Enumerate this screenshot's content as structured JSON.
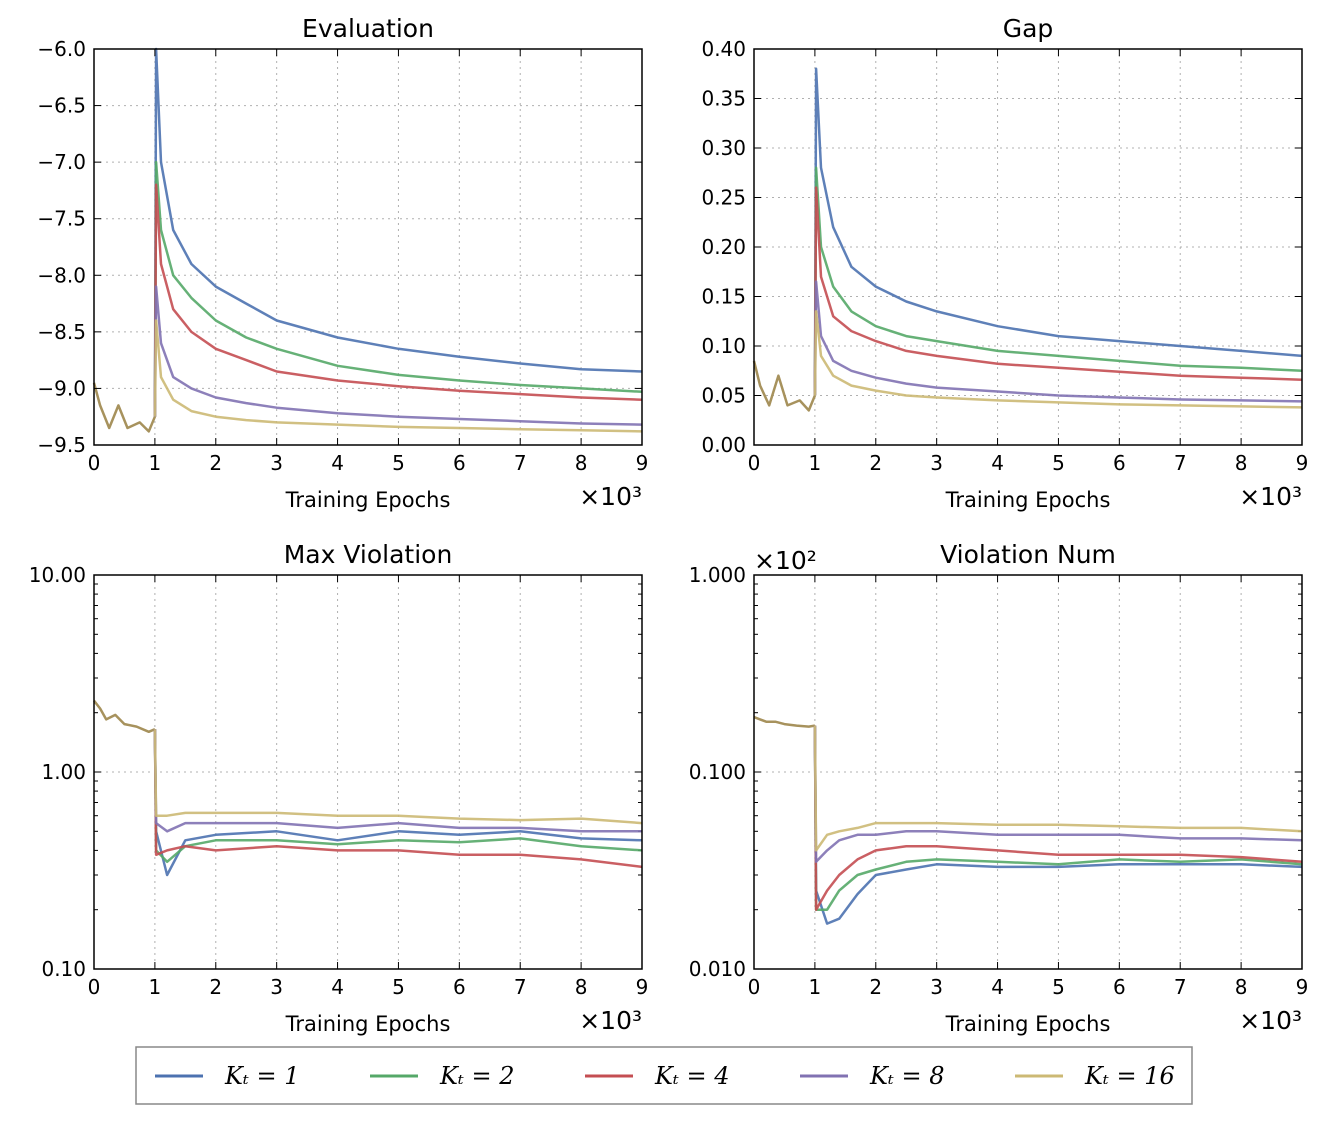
{
  "figure": {
    "legend": [
      {
        "label": "K_t = 1",
        "text": "Kₜ = 1",
        "color": "#4c72b0"
      },
      {
        "label": "K_t = 2",
        "text": "Kₜ = 2",
        "color": "#55a868"
      },
      {
        "label": "K_t = 4",
        "text": "Kₜ = 4",
        "color": "#c44e52"
      },
      {
        "label": "K_t = 8",
        "text": "Kₜ = 8",
        "color": "#8172b2"
      },
      {
        "label": "K_t = 16",
        "text": "Kₜ = 16",
        "color": "#ccb974"
      }
    ]
  },
  "chart_data": [
    {
      "type": "line",
      "title": "Evaluation",
      "xlabel": "Training Epochs",
      "x_multiplier": "×10³",
      "xlim": [
        0,
        9
      ],
      "xticks": [
        "0",
        "1",
        "2",
        "3",
        "4",
        "5",
        "6",
        "7",
        "8",
        "9"
      ],
      "ylim": [
        -9.5,
        -6.0
      ],
      "yscale": "linear",
      "yticks": [
        "−6.0",
        "−6.5",
        "−7.0",
        "−7.5",
        "−8.0",
        "−8.5",
        "−9.0",
        "−9.5"
      ],
      "ytick_values": [
        -6.0,
        -6.5,
        -7.0,
        -7.5,
        -8.0,
        -8.5,
        -9.0,
        -9.5
      ],
      "pre": [
        [
          0,
          -8.95
        ],
        [
          0.1,
          -9.15
        ],
        [
          0.25,
          -9.35
        ],
        [
          0.4,
          -9.15
        ],
        [
          0.55,
          -9.35
        ],
        [
          0.75,
          -9.3
        ],
        [
          0.9,
          -9.38
        ],
        [
          1.0,
          -9.25
        ]
      ],
      "series": [
        {
          "name": "K_t = 1",
          "x": [
            1.02,
            1.1,
            1.3,
            1.6,
            2,
            2.5,
            3,
            4,
            5,
            6,
            7,
            8,
            9
          ],
          "y": [
            -6.0,
            -7.0,
            -7.6,
            -7.9,
            -8.1,
            -8.25,
            -8.4,
            -8.55,
            -8.65,
            -8.72,
            -8.78,
            -8.83,
            -8.85
          ]
        },
        {
          "name": "K_t = 2",
          "x": [
            1.02,
            1.1,
            1.3,
            1.6,
            2,
            2.5,
            3,
            4,
            5,
            6,
            7,
            8,
            9
          ],
          "y": [
            -7.0,
            -7.6,
            -8.0,
            -8.2,
            -8.4,
            -8.55,
            -8.65,
            -8.8,
            -8.88,
            -8.93,
            -8.97,
            -9.0,
            -9.03
          ]
        },
        {
          "name": "K_t = 4",
          "x": [
            1.02,
            1.1,
            1.3,
            1.6,
            2,
            2.5,
            3,
            4,
            5,
            6,
            7,
            8,
            9
          ],
          "y": [
            -7.2,
            -7.9,
            -8.3,
            -8.5,
            -8.65,
            -8.75,
            -8.85,
            -8.93,
            -8.98,
            -9.02,
            -9.05,
            -9.08,
            -9.1
          ]
        },
        {
          "name": "K_t = 8",
          "x": [
            1.02,
            1.1,
            1.3,
            1.6,
            2,
            2.5,
            3,
            4,
            5,
            6,
            7,
            8,
            9
          ],
          "y": [
            -8.1,
            -8.6,
            -8.9,
            -9.0,
            -9.08,
            -9.13,
            -9.17,
            -9.22,
            -9.25,
            -9.27,
            -9.29,
            -9.31,
            -9.32
          ]
        },
        {
          "name": "K_t = 16",
          "x": [
            1.02,
            1.1,
            1.3,
            1.6,
            2,
            2.5,
            3,
            4,
            5,
            6,
            7,
            8,
            9
          ],
          "y": [
            -8.4,
            -8.9,
            -9.1,
            -9.2,
            -9.25,
            -9.28,
            -9.3,
            -9.32,
            -9.34,
            -9.35,
            -9.36,
            -9.37,
            -9.38
          ]
        }
      ]
    },
    {
      "type": "line",
      "title": "Gap",
      "xlabel": "Training Epochs",
      "x_multiplier": "×10³",
      "xlim": [
        0,
        9
      ],
      "xticks": [
        "0",
        "1",
        "2",
        "3",
        "4",
        "5",
        "6",
        "7",
        "8",
        "9"
      ],
      "ylim": [
        0.0,
        0.4
      ],
      "yscale": "linear",
      "yticks": [
        "0.40",
        "0.35",
        "0.30",
        "0.25",
        "0.20",
        "0.15",
        "0.10",
        "0.05",
        "0.00"
      ],
      "ytick_values": [
        0.4,
        0.35,
        0.3,
        0.25,
        0.2,
        0.15,
        0.1,
        0.05,
        0.0
      ],
      "pre": [
        [
          0,
          0.085
        ],
        [
          0.1,
          0.06
        ],
        [
          0.25,
          0.04
        ],
        [
          0.4,
          0.07
        ],
        [
          0.55,
          0.04
        ],
        [
          0.75,
          0.045
        ],
        [
          0.9,
          0.035
        ],
        [
          1.0,
          0.05
        ]
      ],
      "series": [
        {
          "name": "K_t = 1",
          "x": [
            1.02,
            1.1,
            1.3,
            1.6,
            2,
            2.5,
            3,
            4,
            5,
            6,
            7,
            8,
            9
          ],
          "y": [
            0.38,
            0.28,
            0.22,
            0.18,
            0.16,
            0.145,
            0.135,
            0.12,
            0.11,
            0.105,
            0.1,
            0.095,
            0.09
          ]
        },
        {
          "name": "K_t = 2",
          "x": [
            1.02,
            1.1,
            1.3,
            1.6,
            2,
            2.5,
            3,
            4,
            5,
            6,
            7,
            8,
            9
          ],
          "y": [
            0.28,
            0.2,
            0.16,
            0.135,
            0.12,
            0.11,
            0.105,
            0.095,
            0.09,
            0.085,
            0.08,
            0.078,
            0.075
          ]
        },
        {
          "name": "K_t = 4",
          "x": [
            1.02,
            1.1,
            1.3,
            1.6,
            2,
            2.5,
            3,
            4,
            5,
            6,
            7,
            8,
            9
          ],
          "y": [
            0.26,
            0.17,
            0.13,
            0.115,
            0.105,
            0.095,
            0.09,
            0.082,
            0.078,
            0.074,
            0.07,
            0.068,
            0.066
          ]
        },
        {
          "name": "K_t = 8",
          "x": [
            1.02,
            1.1,
            1.3,
            1.6,
            2,
            2.5,
            3,
            4,
            5,
            6,
            7,
            8,
            9
          ],
          "y": [
            0.165,
            0.11,
            0.085,
            0.075,
            0.068,
            0.062,
            0.058,
            0.054,
            0.05,
            0.048,
            0.046,
            0.045,
            0.044
          ]
        },
        {
          "name": "K_t = 16",
          "x": [
            1.02,
            1.1,
            1.3,
            1.6,
            2,
            2.5,
            3,
            4,
            5,
            6,
            7,
            8,
            9
          ],
          "y": [
            0.135,
            0.09,
            0.07,
            0.06,
            0.055,
            0.05,
            0.048,
            0.045,
            0.043,
            0.041,
            0.04,
            0.039,
            0.038
          ]
        }
      ]
    },
    {
      "type": "line",
      "title": "Max Violation",
      "xlabel": "Training Epochs",
      "x_multiplier": "×10³",
      "xlim": [
        0,
        9
      ],
      "xticks": [
        "0",
        "1",
        "2",
        "3",
        "4",
        "5",
        "6",
        "7",
        "8",
        "9"
      ],
      "ylim": [
        0.1,
        10.0
      ],
      "yscale": "log",
      "yticks": [
        "10.00",
        "1.00",
        "0.10"
      ],
      "ytick_values": [
        10.0,
        1.0,
        0.1
      ],
      "pre": [
        [
          0,
          2.3
        ],
        [
          0.1,
          2.1
        ],
        [
          0.2,
          1.85
        ],
        [
          0.35,
          1.95
        ],
        [
          0.5,
          1.75
        ],
        [
          0.7,
          1.7
        ],
        [
          0.9,
          1.6
        ],
        [
          1.0,
          1.65
        ]
      ],
      "series": [
        {
          "name": "K_t = 1",
          "x": [
            1.02,
            1.2,
            1.5,
            2,
            3,
            4,
            5,
            6,
            7,
            8,
            9
          ],
          "y": [
            0.5,
            0.3,
            0.45,
            0.48,
            0.5,
            0.45,
            0.5,
            0.48,
            0.5,
            0.46,
            0.45
          ]
        },
        {
          "name": "K_t = 2",
          "x": [
            1.02,
            1.2,
            1.5,
            2,
            3,
            4,
            5,
            6,
            7,
            8,
            9
          ],
          "y": [
            0.4,
            0.35,
            0.42,
            0.45,
            0.45,
            0.43,
            0.45,
            0.44,
            0.46,
            0.42,
            0.4
          ]
        },
        {
          "name": "K_t = 4",
          "x": [
            1.02,
            1.2,
            1.5,
            2,
            3,
            4,
            5,
            6,
            7,
            8,
            9
          ],
          "y": [
            0.38,
            0.4,
            0.42,
            0.4,
            0.42,
            0.4,
            0.4,
            0.38,
            0.38,
            0.36,
            0.33
          ]
        },
        {
          "name": "K_t = 8",
          "x": [
            1.02,
            1.2,
            1.5,
            2,
            3,
            4,
            5,
            6,
            7,
            8,
            9
          ],
          "y": [
            0.55,
            0.5,
            0.55,
            0.55,
            0.55,
            0.52,
            0.55,
            0.52,
            0.52,
            0.5,
            0.5
          ]
        },
        {
          "name": "K_t = 16",
          "x": [
            1.02,
            1.2,
            1.5,
            2,
            3,
            4,
            5,
            6,
            7,
            8,
            9
          ],
          "y": [
            0.6,
            0.6,
            0.62,
            0.62,
            0.62,
            0.6,
            0.6,
            0.58,
            0.57,
            0.58,
            0.55
          ]
        }
      ]
    },
    {
      "type": "line",
      "title": "Violation Num",
      "xlabel": "Training Epochs",
      "x_multiplier": "×10³",
      "y_multiplier": "×10²",
      "xlim": [
        0,
        9
      ],
      "xticks": [
        "0",
        "1",
        "2",
        "3",
        "4",
        "5",
        "6",
        "7",
        "8",
        "9"
      ],
      "ylim": [
        0.01,
        1.0
      ],
      "yscale": "log",
      "yticks": [
        "1.000",
        "0.100",
        "0.010"
      ],
      "ytick_values": [
        1.0,
        0.1,
        0.01
      ],
      "pre": [
        [
          0,
          0.19
        ],
        [
          0.1,
          0.185
        ],
        [
          0.2,
          0.18
        ],
        [
          0.35,
          0.18
        ],
        [
          0.5,
          0.175
        ],
        [
          0.7,
          0.172
        ],
        [
          0.9,
          0.17
        ],
        [
          1.0,
          0.172
        ]
      ],
      "series": [
        {
          "name": "K_t = 1",
          "x": [
            1.02,
            1.2,
            1.4,
            1.7,
            2,
            2.5,
            3,
            4,
            5,
            6,
            7,
            8,
            9
          ],
          "y": [
            0.025,
            0.017,
            0.018,
            0.024,
            0.03,
            0.032,
            0.034,
            0.033,
            0.033,
            0.034,
            0.034,
            0.034,
            0.033
          ]
        },
        {
          "name": "K_t = 2",
          "x": [
            1.02,
            1.2,
            1.4,
            1.7,
            2,
            2.5,
            3,
            4,
            5,
            6,
            7,
            8,
            9
          ],
          "y": [
            0.02,
            0.02,
            0.025,
            0.03,
            0.032,
            0.035,
            0.036,
            0.035,
            0.034,
            0.036,
            0.035,
            0.036,
            0.034
          ]
        },
        {
          "name": "K_t = 4",
          "x": [
            1.02,
            1.2,
            1.4,
            1.7,
            2,
            2.5,
            3,
            4,
            5,
            6,
            7,
            8,
            9
          ],
          "y": [
            0.02,
            0.025,
            0.03,
            0.036,
            0.04,
            0.042,
            0.042,
            0.04,
            0.038,
            0.038,
            0.038,
            0.037,
            0.035
          ]
        },
        {
          "name": "K_t = 8",
          "x": [
            1.02,
            1.2,
            1.4,
            1.7,
            2,
            2.5,
            3,
            4,
            5,
            6,
            7,
            8,
            9
          ],
          "y": [
            0.035,
            0.04,
            0.045,
            0.048,
            0.048,
            0.05,
            0.05,
            0.048,
            0.048,
            0.048,
            0.046,
            0.046,
            0.045
          ]
        },
        {
          "name": "K_t = 16",
          "x": [
            1.02,
            1.2,
            1.4,
            1.7,
            2,
            2.5,
            3,
            4,
            5,
            6,
            7,
            8,
            9
          ],
          "y": [
            0.04,
            0.048,
            0.05,
            0.052,
            0.055,
            0.055,
            0.055,
            0.054,
            0.054,
            0.053,
            0.052,
            0.052,
            0.05
          ]
        }
      ]
    }
  ]
}
